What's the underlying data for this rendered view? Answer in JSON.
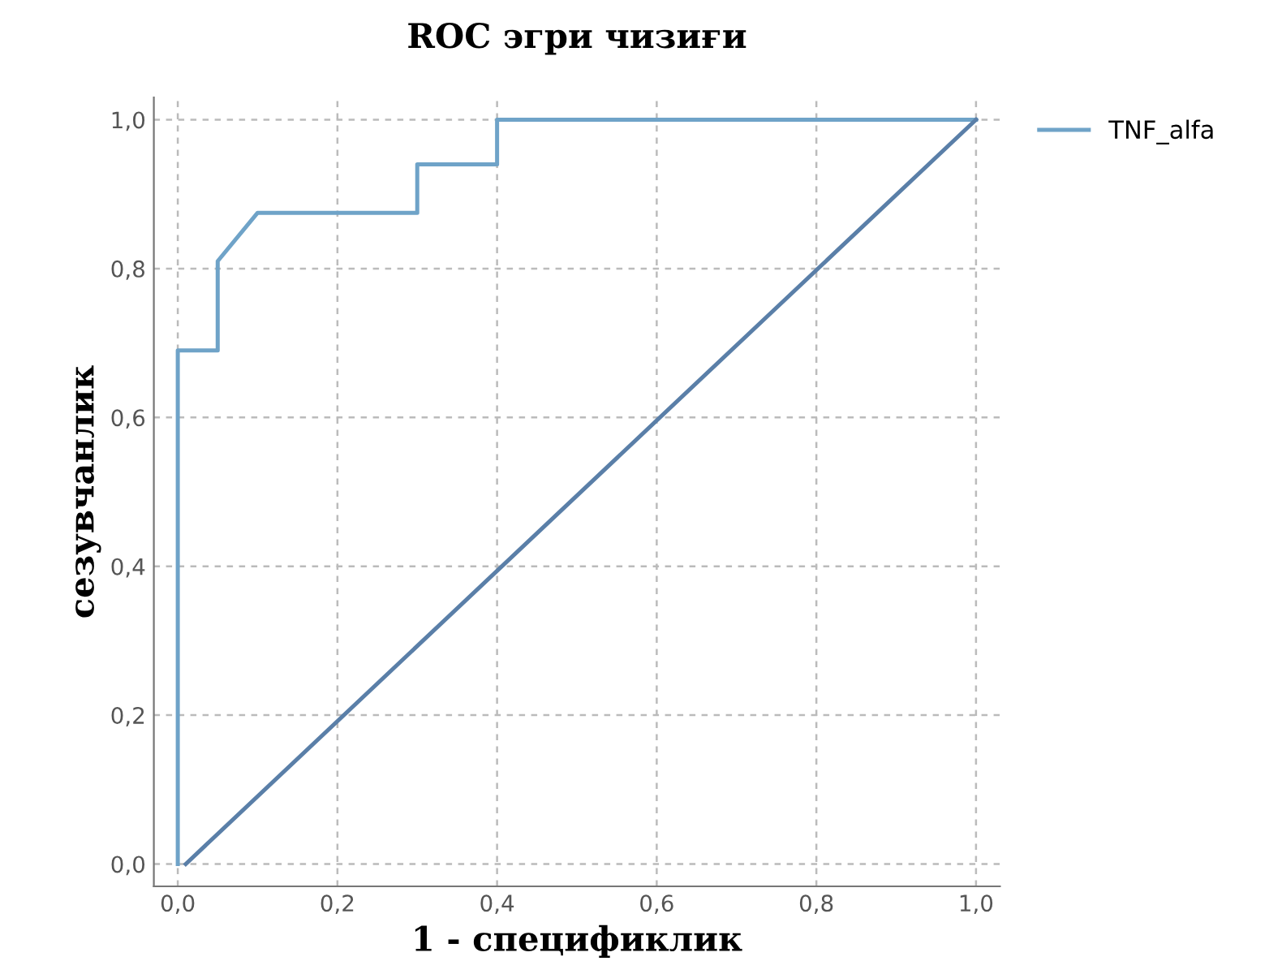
{
  "chart_data": {
    "type": "line",
    "title": "ROC эгри чизиғи",
    "xlabel": "1 - спецификлик",
    "ylabel": "сезувчанлик",
    "series": [
      {
        "name": "TNF_alfa",
        "color": "#6fa3c8",
        "x": [
          0,
          0,
          0.05,
          0.05,
          0.1,
          0.3,
          0.3,
          0.4,
          0.4,
          1.0
        ],
        "values": [
          0,
          0.69,
          0.69,
          0.81,
          0.875,
          0.875,
          0.94,
          0.94,
          1.0,
          1.0
        ]
      },
      {
        "color": "#5a7fa8",
        "x": [
          0.01,
          1.0
        ],
        "values": [
          0,
          1.0
        ]
      }
    ],
    "xlim": [
      -0.03,
      1.03
    ],
    "ylim": [
      -0.03,
      1.03
    ],
    "xticks": [
      {
        "value": 0,
        "label": "0,0"
      },
      {
        "value": 0.2,
        "label": "0,2"
      },
      {
        "value": 0.4,
        "label": "0,4"
      },
      {
        "value": 0.6,
        "label": "0,6"
      },
      {
        "value": 0.8,
        "label": "0,8"
      },
      {
        "value": 1.0,
        "label": "1,0"
      }
    ],
    "yticks": [
      {
        "value": 0,
        "label": "0,0"
      },
      {
        "value": 0.2,
        "label": "0,2"
      },
      {
        "value": 0.4,
        "label": "0,4"
      },
      {
        "value": 0.6,
        "label": "0,6"
      },
      {
        "value": 0.8,
        "label": "0,8"
      },
      {
        "value": 1.0,
        "label": "1,0"
      }
    ],
    "grid": true,
    "legend": "top right",
    "marker": "none",
    "line_style": "solid"
  }
}
